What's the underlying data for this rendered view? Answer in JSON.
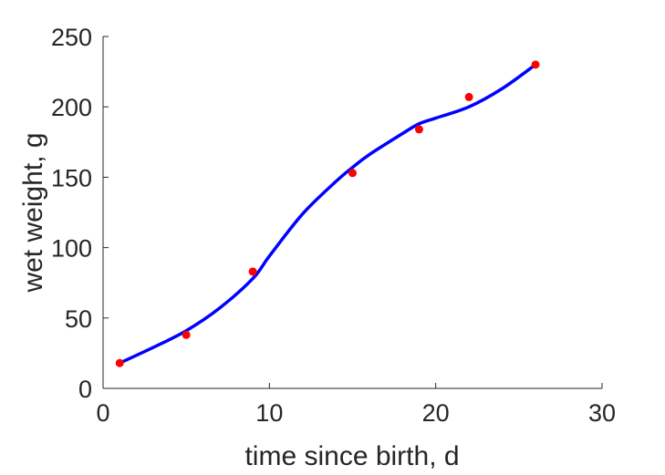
{
  "chart_data": {
    "type": "line",
    "title": "",
    "xlabel": "time since birth, d",
    "ylabel": "wet weight, g",
    "xlim": [
      0,
      30
    ],
    "ylim": [
      0,
      250
    ],
    "xticks": [
      "0",
      "10",
      "20",
      "30"
    ],
    "yticks": [
      "0",
      "50",
      "100",
      "150",
      "200",
      "250"
    ],
    "grid": false,
    "legend": "none",
    "series": [
      {
        "kind": "scatter",
        "color": "#ff0000",
        "x": [
          1,
          5,
          9,
          15,
          19,
          22,
          26
        ],
        "y": [
          18,
          38,
          83,
          153,
          184,
          207,
          230
        ]
      },
      {
        "kind": "line",
        "color": "#0000ff",
        "x": [
          1,
          3,
          5,
          7,
          9,
          10,
          12,
          14,
          15,
          16,
          18,
          19,
          20,
          22,
          24,
          26
        ],
        "y": [
          18,
          29,
          41,
          57,
          78,
          94,
          124,
          147,
          157,
          166,
          181,
          188,
          192,
          200,
          213,
          230
        ]
      }
    ]
  }
}
